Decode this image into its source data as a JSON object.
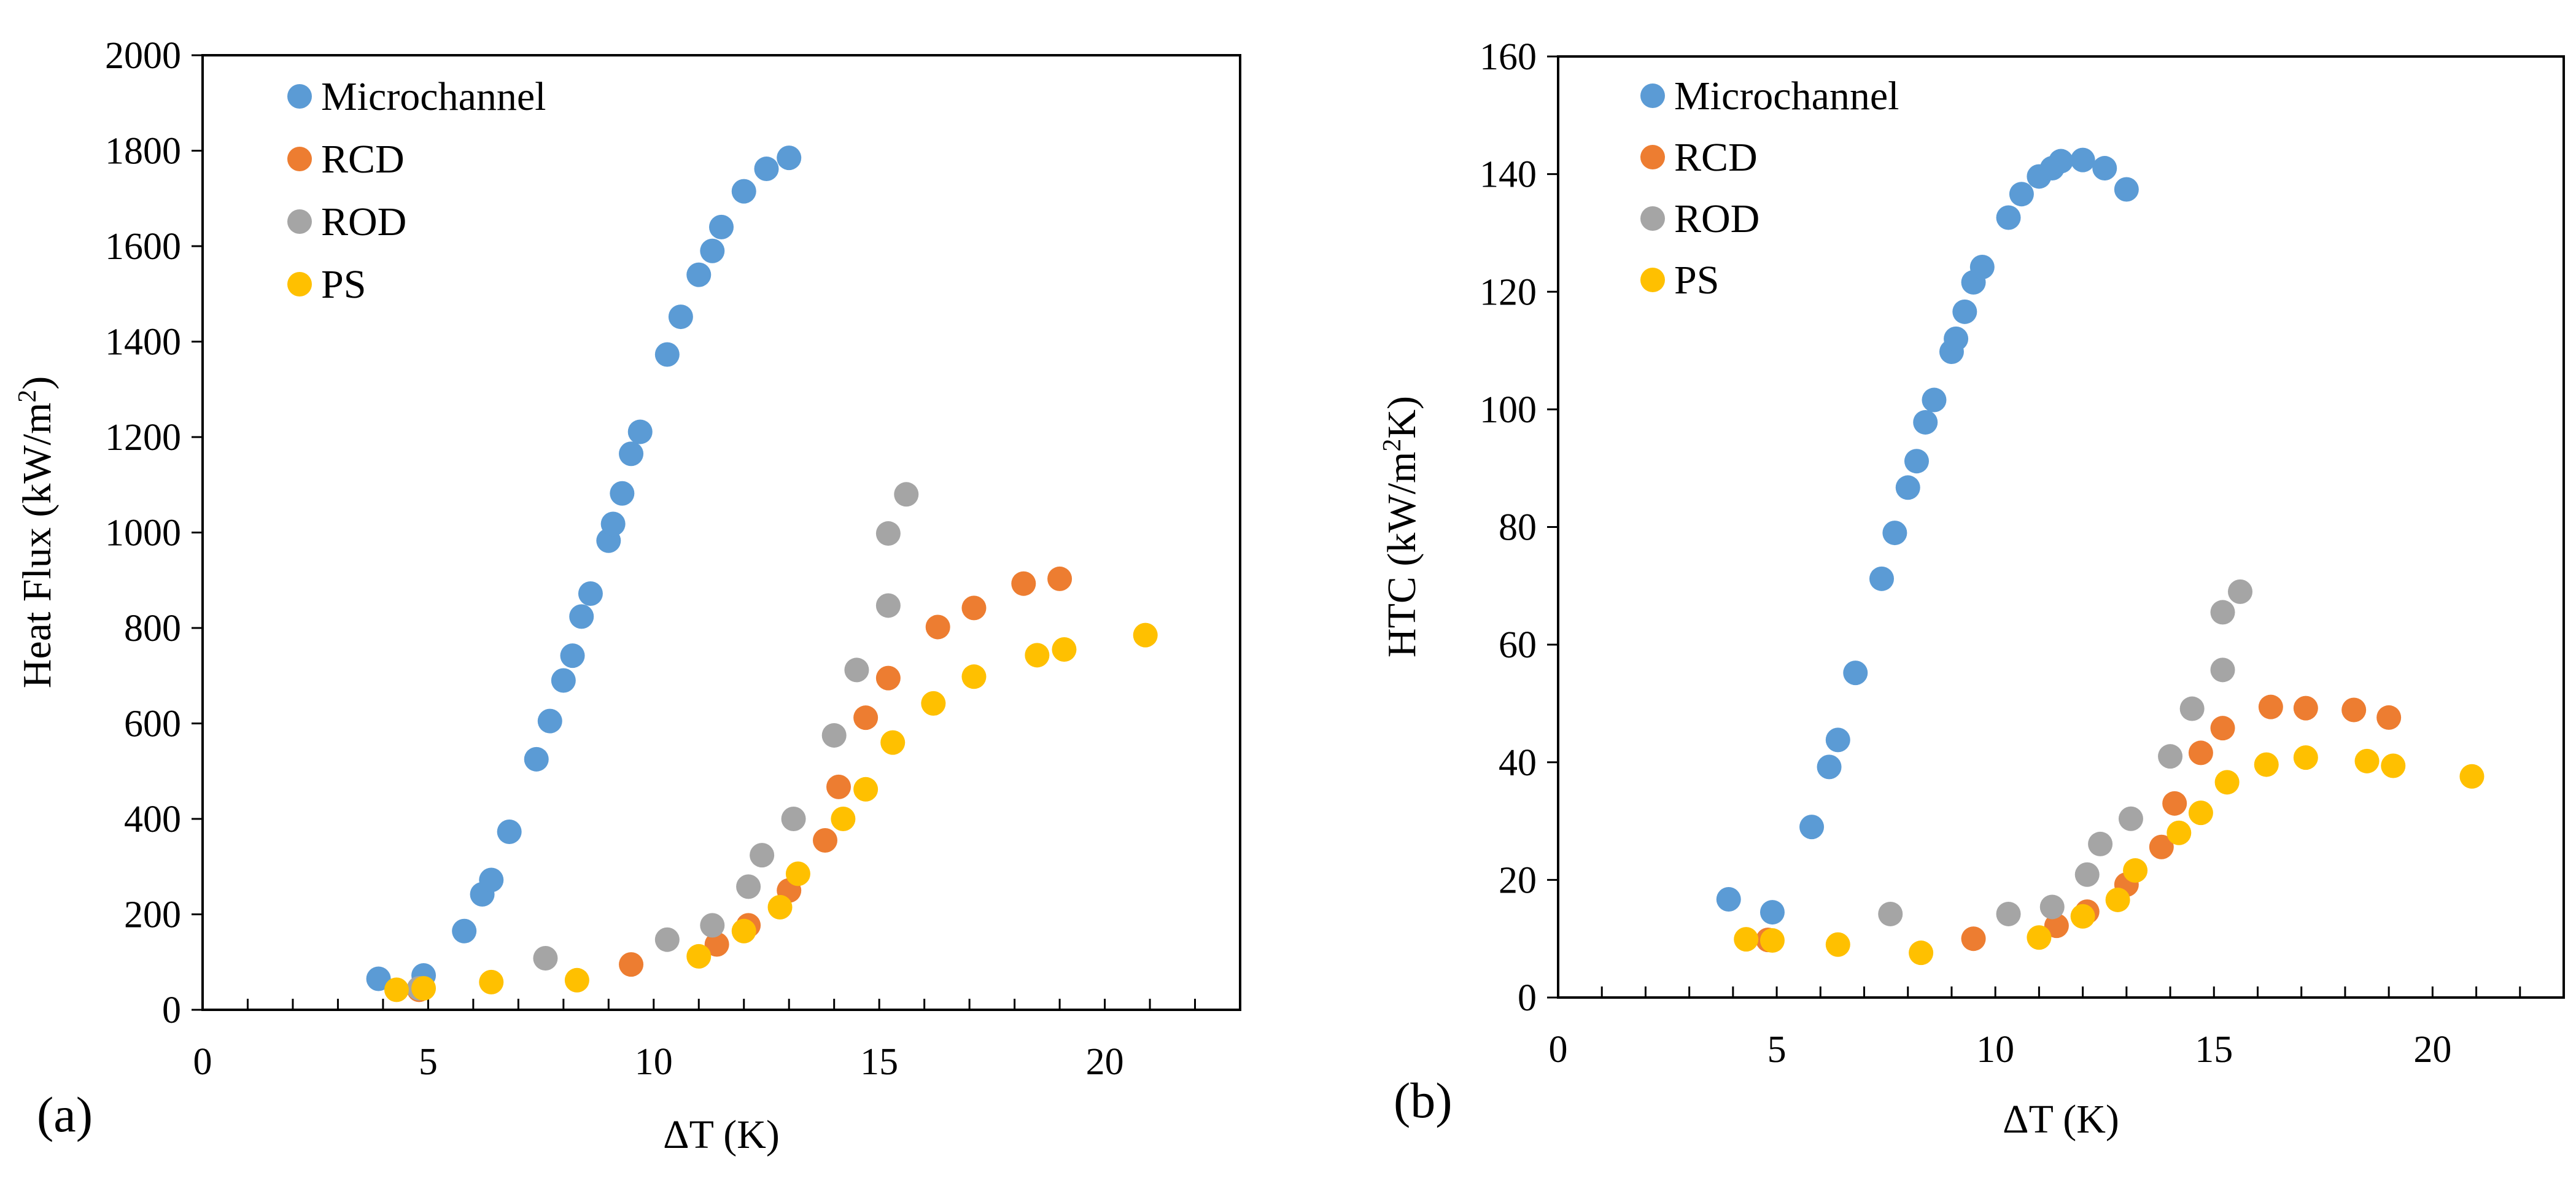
{
  "chart_data": [
    {
      "type": "scatter",
      "panel_label": "(a)",
      "xlabel": "ΔT (K)",
      "ylabel_main": "Heat Flux (kW/m",
      "ylabel_sup": "2",
      "ylabel_end": ")",
      "xlim": [
        0,
        23
      ],
      "ylim": [
        0,
        2000
      ],
      "xticks": [
        0,
        5,
        10,
        15,
        20
      ],
      "yticks": [
        0,
        200,
        400,
        600,
        800,
        1000,
        1200,
        1400,
        1600,
        1800,
        2000
      ],
      "legend_position": "top-left",
      "series": [
        {
          "name": "Microchannel",
          "color": "#5B9BD5",
          "points": [
            [
              3.9,
              65
            ],
            [
              4.9,
              72
            ],
            [
              5.8,
              165
            ],
            [
              6.2,
              242
            ],
            [
              6.4,
              272
            ],
            [
              6.8,
              373
            ],
            [
              7.4,
              525
            ],
            [
              7.7,
              605
            ],
            [
              8.0,
              690
            ],
            [
              8.2,
              742
            ],
            [
              8.4,
              824
            ],
            [
              8.6,
              872
            ],
            [
              9.0,
              983
            ],
            [
              9.1,
              1018
            ],
            [
              9.3,
              1082
            ],
            [
              9.5,
              1165
            ],
            [
              9.7,
              1211
            ],
            [
              10.3,
              1373
            ],
            [
              10.6,
              1452
            ],
            [
              11.0,
              1540
            ],
            [
              11.3,
              1590
            ],
            [
              11.5,
              1640
            ],
            [
              12.0,
              1715
            ],
            [
              12.5,
              1762
            ],
            [
              13.0,
              1785
            ]
          ]
        },
        {
          "name": "RCD",
          "color": "#ED7D31",
          "points": [
            [
              4.8,
              42
            ],
            [
              9.5,
              95
            ],
            [
              11.4,
              137
            ],
            [
              12.1,
              177
            ],
            [
              13.0,
              250
            ],
            [
              13.8,
              355
            ],
            [
              14.1,
              467
            ],
            [
              14.7,
              612
            ],
            [
              15.2,
              695
            ],
            [
              16.3,
              802
            ],
            [
              17.1,
              842
            ],
            [
              18.2,
              893
            ],
            [
              19.0,
              903
            ]
          ]
        },
        {
          "name": "ROD",
          "color": "#A5A5A5",
          "points": [
            [
              4.8,
              45
            ],
            [
              7.6,
              108
            ],
            [
              10.3,
              147
            ],
            [
              11.3,
              177
            ],
            [
              12.1,
              258
            ],
            [
              12.4,
              324
            ],
            [
              13.1,
              400
            ],
            [
              14.0,
              575
            ],
            [
              14.5,
              712
            ],
            [
              15.2,
              847
            ],
            [
              15.2,
              998
            ],
            [
              15.6,
              1080
            ]
          ]
        },
        {
          "name": "PS",
          "color": "#FFC000",
          "points": [
            [
              4.3,
              42
            ],
            [
              4.9,
              45
            ],
            [
              6.4,
              58
            ],
            [
              8.3,
              62
            ],
            [
              11.0,
              112
            ],
            [
              12.0,
              165
            ],
            [
              12.8,
              215
            ],
            [
              13.2,
              285
            ],
            [
              14.2,
              400
            ],
            [
              14.7,
              462
            ],
            [
              15.3,
              560
            ],
            [
              16.2,
              642
            ],
            [
              17.1,
              698
            ],
            [
              18.5,
              743
            ],
            [
              19.1,
              755
            ],
            [
              20.9,
              785
            ]
          ]
        }
      ]
    },
    {
      "type": "scatter",
      "panel_label": "(b)",
      "xlabel": "ΔT (K)",
      "ylabel_main": "HTC (kW/m",
      "ylabel_sup": "2",
      "ylabel_end": "K)",
      "xlim": [
        0,
        23
      ],
      "ylim": [
        0,
        160
      ],
      "xticks": [
        0,
        5,
        10,
        15,
        20
      ],
      "yticks": [
        0,
        20,
        40,
        60,
        80,
        100,
        120,
        140,
        160
      ],
      "legend_position": "top-left",
      "series": [
        {
          "name": "Microchannel",
          "color": "#5B9BD5",
          "points": [
            [
              3.9,
              16.7
            ],
            [
              4.9,
              14.5
            ],
            [
              5.8,
              29.0
            ],
            [
              6.2,
              39.2
            ],
            [
              6.4,
              43.8
            ],
            [
              6.8,
              55.2
            ],
            [
              7.4,
              71.2
            ],
            [
              7.7,
              79.0
            ],
            [
              8.0,
              86.7
            ],
            [
              8.2,
              91.2
            ],
            [
              8.4,
              97.8
            ],
            [
              8.6,
              101.6
            ],
            [
              9.0,
              109.8
            ],
            [
              9.1,
              112.0
            ],
            [
              9.3,
              116.6
            ],
            [
              9.5,
              121.6
            ],
            [
              9.7,
              124.2
            ],
            [
              10.3,
              132.6
            ],
            [
              10.6,
              136.6
            ],
            [
              11.0,
              139.6
            ],
            [
              11.3,
              141.0
            ],
            [
              11.5,
              142.2
            ],
            [
              12.0,
              142.4
            ],
            [
              12.5,
              141.0
            ],
            [
              13.0,
              137.4
            ]
          ]
        },
        {
          "name": "RCD",
          "color": "#ED7D31",
          "points": [
            [
              4.8,
              9.8
            ],
            [
              9.5,
              10.0
            ],
            [
              11.4,
              12.2
            ],
            [
              12.1,
              14.6
            ],
            [
              13.0,
              19.2
            ],
            [
              13.8,
              25.6
            ],
            [
              14.1,
              33.0
            ],
            [
              14.7,
              41.6
            ],
            [
              15.2,
              45.8
            ],
            [
              16.3,
              49.4
            ],
            [
              17.1,
              49.2
            ],
            [
              18.2,
              48.9
            ],
            [
              19.0,
              47.6
            ]
          ]
        },
        {
          "name": "ROD",
          "color": "#A5A5A5",
          "points": [
            [
              7.6,
              14.2
            ],
            [
              10.3,
              14.2
            ],
            [
              11.3,
              15.4
            ],
            [
              12.1,
              20.9
            ],
            [
              12.4,
              26.1
            ],
            [
              13.1,
              30.4
            ],
            [
              14.0,
              41.0
            ],
            [
              14.5,
              49.1
            ],
            [
              15.2,
              55.7
            ],
            [
              15.2,
              65.5
            ],
            [
              15.6,
              69.0
            ]
          ]
        },
        {
          "name": "PS",
          "color": "#FFC000",
          "points": [
            [
              4.3,
              9.9
            ],
            [
              4.9,
              9.7
            ],
            [
              6.4,
              9.0
            ],
            [
              8.3,
              7.6
            ],
            [
              11.0,
              10.2
            ],
            [
              12.0,
              13.8
            ],
            [
              12.8,
              16.6
            ],
            [
              13.2,
              21.6
            ],
            [
              14.2,
              28.0
            ],
            [
              14.7,
              31.4
            ],
            [
              15.3,
              36.6
            ],
            [
              16.2,
              39.6
            ],
            [
              17.1,
              40.8
            ],
            [
              18.5,
              40.2
            ],
            [
              19.1,
              39.4
            ],
            [
              20.9,
              37.6
            ]
          ]
        }
      ]
    }
  ]
}
